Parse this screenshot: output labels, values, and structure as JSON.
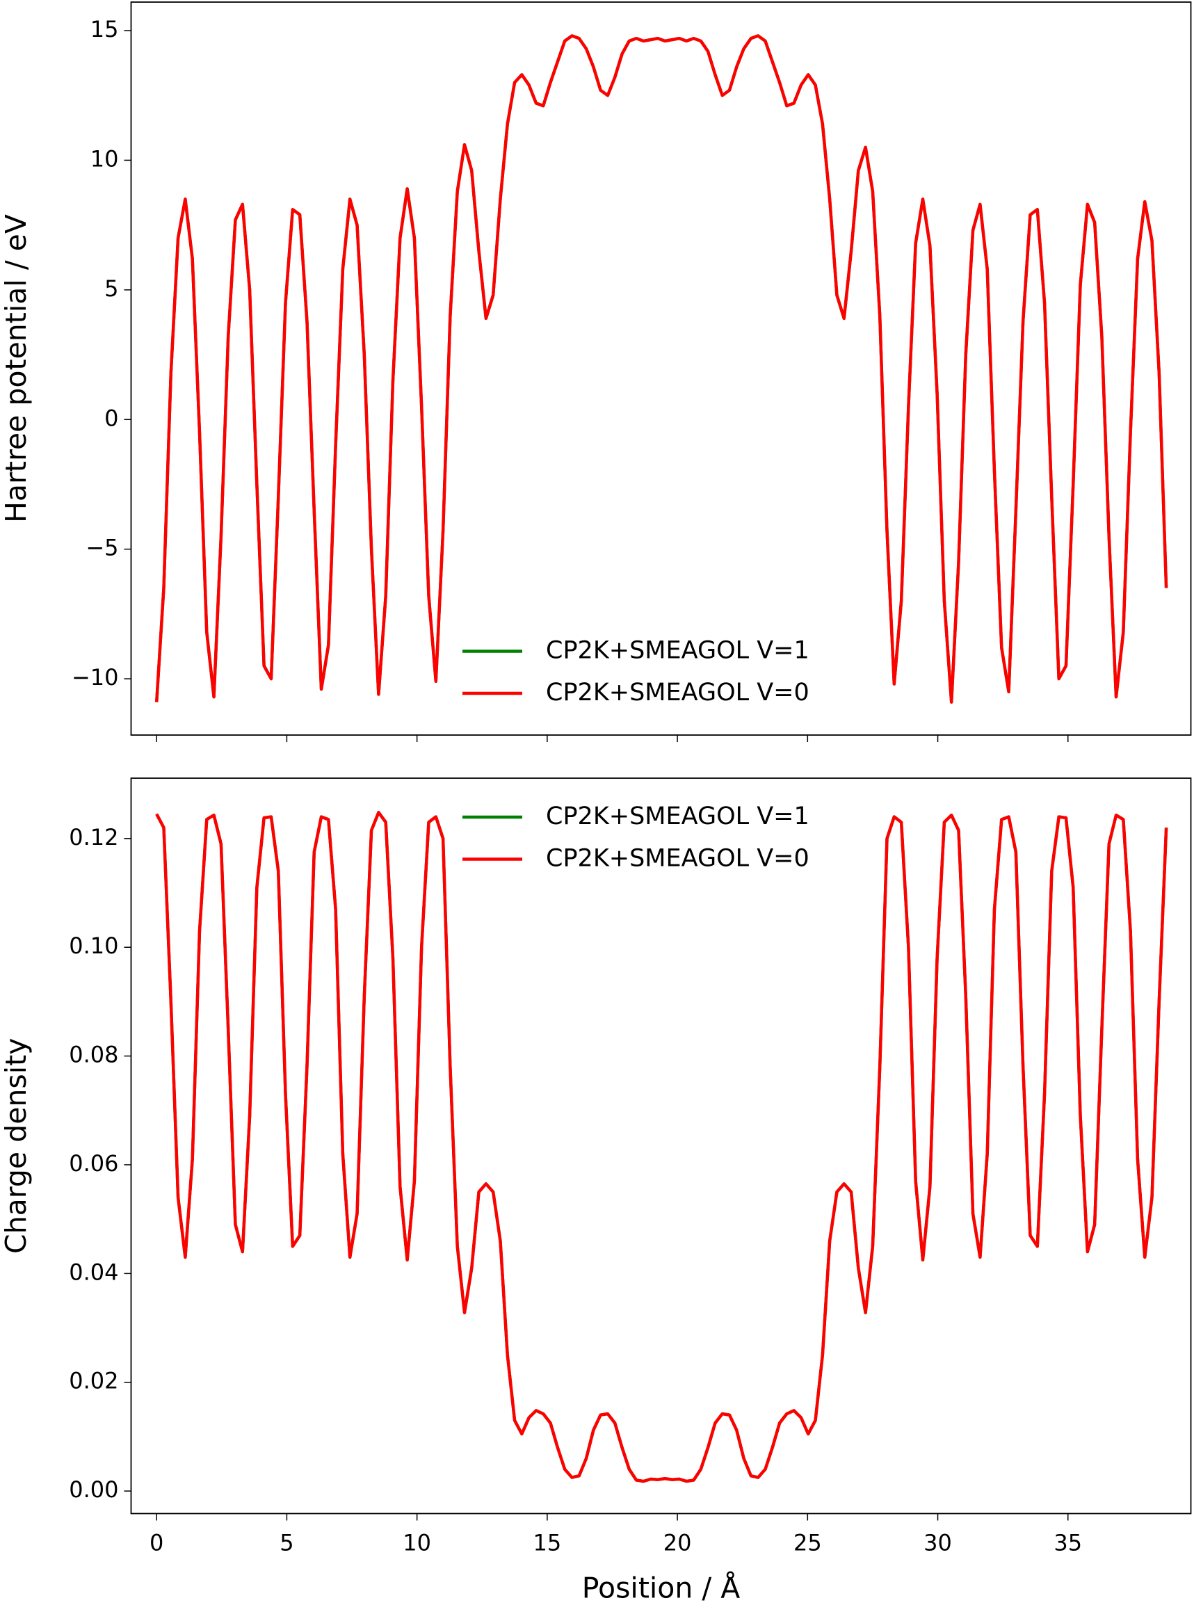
{
  "chart_data": [
    {
      "type": "line",
      "ylabel": "Hartree potential / eV",
      "xlim": [
        -0.98,
        39.72
      ],
      "ylim": [
        -12.17,
        16.1
      ],
      "xticks": [
        0,
        5,
        10,
        15,
        20,
        25,
        30,
        35
      ],
      "show_xtick_labels": false,
      "yticks": [
        {
          "value": -10,
          "label": "−10"
        },
        {
          "value": -5,
          "label": "−5"
        },
        0,
        5,
        10,
        15
      ],
      "legend": "lower center",
      "x": [
        0,
        0.275,
        0.55,
        0.825,
        1.1,
        1.375,
        1.65,
        1.925,
        2.2,
        2.475,
        2.75,
        3.025,
        3.3,
        3.575,
        3.85,
        4.125,
        4.4,
        4.675,
        4.95,
        5.225,
        5.5,
        5.775,
        6.05,
        6.325,
        6.6,
        6.875,
        7.15,
        7.425,
        7.7,
        7.975,
        8.25,
        8.525,
        8.8,
        9.075,
        9.35,
        9.625,
        9.9,
        10.175,
        10.45,
        10.725,
        11,
        11.275,
        11.55,
        11.825,
        12.1,
        12.375,
        12.65,
        12.925,
        13.2,
        13.475,
        13.75,
        14.025,
        14.3,
        14.575,
        14.85,
        15.125,
        15.4,
        15.675,
        15.95,
        16.225,
        16.5,
        16.775,
        17.05,
        17.325,
        17.6,
        17.875,
        18.15,
        18.425,
        18.7,
        18.975,
        19.25,
        19.525,
        19.8,
        20.075,
        20.35,
        20.625,
        20.9,
        21.175,
        21.45,
        21.725,
        22,
        22.275,
        22.55,
        22.825,
        23.1,
        23.375,
        23.65,
        23.925,
        24.2,
        24.475,
        24.75,
        25.025,
        25.3,
        25.575,
        25.85,
        26.125,
        26.4,
        26.675,
        26.95,
        27.225,
        27.5,
        27.775,
        28.05,
        28.325,
        28.6,
        28.875,
        29.15,
        29.425,
        29.7,
        29.975,
        30.25,
        30.525,
        30.8,
        31.075,
        31.35,
        31.625,
        31.9,
        32.175,
        32.45,
        32.725,
        33,
        33.275,
        33.55,
        33.825,
        34.1,
        34.375,
        34.65,
        34.925,
        35.2,
        35.475,
        35.75,
        36.025,
        36.3,
        36.575,
        36.85,
        37.125,
        37.4,
        37.675,
        37.95,
        38.225,
        38.5,
        38.775
      ],
      "series": [
        {
          "name": "CP2K+SMEAGOL V=1",
          "color": "#008000",
          "values": [
            -10.9,
            -6.5,
            1.8,
            7.0,
            8.5,
            6.2,
            -0.5,
            -8.2,
            -10.7,
            -4.5,
            3.2,
            7.7,
            8.3,
            5.0,
            -2.5,
            -9.5,
            -10.0,
            -3.0,
            4.5,
            8.1,
            7.9,
            3.8,
            -3.5,
            -10.4,
            -8.7,
            -1.0,
            5.8,
            8.5,
            7.5,
            2.5,
            -5.0,
            -10.6,
            -6.8,
            1.5,
            7.0,
            8.9,
            7.0,
            0.5,
            -6.8,
            -10.1,
            -4.3,
            4.0,
            8.8,
            10.6,
            9.6,
            6.5,
            3.9,
            4.8,
            8.5,
            11.4,
            13.0,
            13.3,
            12.9,
            12.2,
            12.1,
            13.0,
            13.8,
            14.6,
            14.8,
            14.7,
            14.3,
            13.6,
            12.7,
            12.5,
            13.2,
            14.1,
            14.6,
            14.7,
            14.6,
            14.65,
            14.7,
            14.6,
            14.65,
            14.7,
            14.6,
            14.7,
            14.6,
            14.2,
            13.3,
            12.5,
            12.7,
            13.6,
            14.3,
            14.7,
            14.8,
            14.6,
            13.8,
            13.0,
            12.1,
            12.2,
            12.9,
            13.3,
            12.9,
            11.4,
            8.5,
            4.8,
            3.9,
            6.5,
            9.6,
            10.5,
            8.8,
            4.0,
            -4.3,
            -10.2,
            -7.0,
            0.5,
            6.8,
            8.5,
            6.7,
            1.0,
            -7.0,
            -10.9,
            -5.5,
            2.5,
            7.3,
            8.3,
            5.8,
            -2.0,
            -8.8,
            -10.5,
            -3.5,
            3.8,
            7.9,
            8.1,
            4.5,
            -3.0,
            -10.0,
            -9.5,
            -2.5,
            5.2,
            8.3,
            7.6,
            3.2,
            -4.5,
            -10.7,
            -8.2,
            -0.5,
            6.2,
            8.4,
            6.9,
            1.8,
            -6.5
          ]
        },
        {
          "name": "CP2K+SMEAGOL V=0",
          "color": "#ff0000",
          "values": [
            -10.9,
            -6.5,
            1.8,
            7.0,
            8.5,
            6.2,
            -0.5,
            -8.2,
            -10.7,
            -4.5,
            3.2,
            7.7,
            8.3,
            5.0,
            -2.5,
            -9.5,
            -10.0,
            -3.0,
            4.5,
            8.1,
            7.9,
            3.8,
            -3.5,
            -10.4,
            -8.7,
            -1.0,
            5.8,
            8.5,
            7.5,
            2.5,
            -5.0,
            -10.6,
            -6.8,
            1.5,
            7.0,
            8.9,
            7.0,
            0.5,
            -6.8,
            -10.1,
            -4.3,
            4.0,
            8.8,
            10.6,
            9.6,
            6.5,
            3.9,
            4.8,
            8.5,
            11.4,
            13.0,
            13.3,
            12.9,
            12.2,
            12.1,
            13.0,
            13.8,
            14.6,
            14.8,
            14.7,
            14.3,
            13.6,
            12.7,
            12.5,
            13.2,
            14.1,
            14.6,
            14.7,
            14.6,
            14.65,
            14.7,
            14.6,
            14.65,
            14.7,
            14.6,
            14.7,
            14.6,
            14.2,
            13.3,
            12.5,
            12.7,
            13.6,
            14.3,
            14.7,
            14.8,
            14.6,
            13.8,
            13.0,
            12.1,
            12.2,
            12.9,
            13.3,
            12.9,
            11.4,
            8.5,
            4.8,
            3.9,
            6.5,
            9.6,
            10.5,
            8.8,
            4.0,
            -4.3,
            -10.2,
            -7.0,
            0.5,
            6.8,
            8.5,
            6.7,
            1.0,
            -7.0,
            -10.9,
            -5.5,
            2.5,
            7.3,
            8.3,
            5.8,
            -2.0,
            -8.8,
            -10.5,
            -3.5,
            3.8,
            7.9,
            8.1,
            4.5,
            -3.0,
            -10.0,
            -9.5,
            -2.5,
            5.2,
            8.3,
            7.6,
            3.2,
            -4.5,
            -10.7,
            -8.2,
            -0.5,
            6.2,
            8.4,
            6.9,
            1.8,
            -6.5
          ]
        }
      ]
    },
    {
      "type": "line",
      "xlabel": "Position / Å",
      "ylabel": "Charge density",
      "xlim": [
        -0.98,
        39.72
      ],
      "ylim": [
        -0.00414,
        0.1311
      ],
      "xticks": [
        0,
        5,
        10,
        15,
        20,
        25,
        30,
        35
      ],
      "show_xtick_labels": true,
      "yticks": [
        {
          "value": 0,
          "label": "0.00"
        },
        0.02,
        0.04,
        0.06,
        0.08,
        {
          "value": 0.1,
          "label": "0.10"
        },
        0.12
      ],
      "legend": "upper center",
      "x": [
        0,
        0.275,
        0.55,
        0.825,
        1.1,
        1.375,
        1.65,
        1.925,
        2.2,
        2.475,
        2.75,
        3.025,
        3.3,
        3.575,
        3.85,
        4.125,
        4.4,
        4.675,
        4.95,
        5.225,
        5.5,
        5.775,
        6.05,
        6.325,
        6.6,
        6.875,
        7.15,
        7.425,
        7.7,
        7.975,
        8.25,
        8.525,
        8.8,
        9.075,
        9.35,
        9.625,
        9.9,
        10.175,
        10.45,
        10.725,
        11,
        11.275,
        11.55,
        11.825,
        12.1,
        12.375,
        12.65,
        12.925,
        13.2,
        13.475,
        13.75,
        14.025,
        14.3,
        14.575,
        14.85,
        15.125,
        15.4,
        15.675,
        15.95,
        16.225,
        16.5,
        16.775,
        17.05,
        17.325,
        17.6,
        17.875,
        18.15,
        18.425,
        18.7,
        18.975,
        19.25,
        19.525,
        19.8,
        20.075,
        20.35,
        20.625,
        20.9,
        21.175,
        21.45,
        21.725,
        22,
        22.275,
        22.55,
        22.825,
        23.1,
        23.375,
        23.65,
        23.925,
        24.2,
        24.475,
        24.75,
        25.025,
        25.3,
        25.575,
        25.85,
        26.125,
        26.4,
        26.675,
        26.95,
        27.225,
        27.5,
        27.775,
        28.05,
        28.325,
        28.6,
        28.875,
        29.15,
        29.425,
        29.7,
        29.975,
        30.25,
        30.525,
        30.8,
        31.075,
        31.35,
        31.625,
        31.9,
        32.175,
        32.45,
        32.725,
        33,
        33.275,
        33.55,
        33.825,
        34.1,
        34.375,
        34.65,
        34.925,
        35.2,
        35.475,
        35.75,
        36.025,
        36.3,
        36.575,
        36.85,
        37.125,
        37.4,
        37.675,
        37.95,
        38.225,
        38.5,
        38.775
      ],
      "series": [
        {
          "name": "CP2K+SMEAGOL V=1",
          "color": "#008000",
          "values": [
            0.1245,
            0.122,
            0.09,
            0.054,
            0.043,
            0.061,
            0.103,
            0.1235,
            0.1243,
            0.119,
            0.085,
            0.049,
            0.044,
            0.069,
            0.111,
            0.1238,
            0.124,
            0.114,
            0.073,
            0.045,
            0.047,
            0.078,
            0.1175,
            0.124,
            0.1235,
            0.107,
            0.062,
            0.043,
            0.051,
            0.091,
            0.1215,
            0.1248,
            0.123,
            0.098,
            0.056,
            0.0425,
            0.057,
            0.1,
            0.123,
            0.124,
            0.12,
            0.078,
            0.045,
            0.0328,
            0.041,
            0.055,
            0.0565,
            0.055,
            0.046,
            0.025,
            0.013,
            0.0105,
            0.0135,
            0.0148,
            0.0142,
            0.0125,
            0.008,
            0.004,
            0.0025,
            0.0028,
            0.006,
            0.0112,
            0.014,
            0.0142,
            0.0125,
            0.008,
            0.004,
            0.002,
            0.0018,
            0.0022,
            0.0021,
            0.0023,
            0.0021,
            0.0022,
            0.0018,
            0.002,
            0.004,
            0.008,
            0.0125,
            0.0142,
            0.014,
            0.0112,
            0.006,
            0.0028,
            0.0025,
            0.004,
            0.008,
            0.0125,
            0.0142,
            0.0148,
            0.0135,
            0.0105,
            0.013,
            0.025,
            0.046,
            0.055,
            0.0565,
            0.055,
            0.041,
            0.0328,
            0.045,
            0.078,
            0.12,
            0.124,
            0.123,
            0.1,
            0.057,
            0.0425,
            0.056,
            0.098,
            0.123,
            0.1243,
            0.1215,
            0.091,
            0.051,
            0.043,
            0.062,
            0.107,
            0.1235,
            0.124,
            0.1175,
            0.078,
            0.047,
            0.045,
            0.073,
            0.114,
            0.124,
            0.1238,
            0.111,
            0.069,
            0.044,
            0.049,
            0.085,
            0.119,
            0.1243,
            0.1235,
            0.103,
            0.061,
            0.043,
            0.054,
            0.09,
            0.122
          ]
        },
        {
          "name": "CP2K+SMEAGOL V=0",
          "color": "#ff0000",
          "values": [
            0.1245,
            0.122,
            0.09,
            0.054,
            0.043,
            0.061,
            0.103,
            0.1235,
            0.1243,
            0.119,
            0.085,
            0.049,
            0.044,
            0.069,
            0.111,
            0.1238,
            0.124,
            0.114,
            0.073,
            0.045,
            0.047,
            0.078,
            0.1175,
            0.124,
            0.1235,
            0.107,
            0.062,
            0.043,
            0.051,
            0.091,
            0.1215,
            0.1248,
            0.123,
            0.098,
            0.056,
            0.0425,
            0.057,
            0.1,
            0.123,
            0.124,
            0.12,
            0.078,
            0.045,
            0.0328,
            0.041,
            0.055,
            0.0565,
            0.055,
            0.046,
            0.025,
            0.013,
            0.0105,
            0.0135,
            0.0148,
            0.0142,
            0.0125,
            0.008,
            0.004,
            0.0025,
            0.0028,
            0.006,
            0.0112,
            0.014,
            0.0142,
            0.0125,
            0.008,
            0.004,
            0.002,
            0.0018,
            0.0022,
            0.0021,
            0.0023,
            0.0021,
            0.0022,
            0.0018,
            0.002,
            0.004,
            0.008,
            0.0125,
            0.0142,
            0.014,
            0.0112,
            0.006,
            0.0028,
            0.0025,
            0.004,
            0.008,
            0.0125,
            0.0142,
            0.0148,
            0.0135,
            0.0105,
            0.013,
            0.025,
            0.046,
            0.055,
            0.0565,
            0.055,
            0.041,
            0.0328,
            0.045,
            0.078,
            0.12,
            0.124,
            0.123,
            0.1,
            0.057,
            0.0425,
            0.056,
            0.098,
            0.123,
            0.1243,
            0.1215,
            0.091,
            0.051,
            0.043,
            0.062,
            0.107,
            0.1235,
            0.124,
            0.1175,
            0.078,
            0.047,
            0.045,
            0.073,
            0.114,
            0.124,
            0.1238,
            0.111,
            0.069,
            0.044,
            0.049,
            0.085,
            0.119,
            0.1243,
            0.1235,
            0.103,
            0.061,
            0.043,
            0.054,
            0.09,
            0.122
          ]
        }
      ]
    }
  ]
}
